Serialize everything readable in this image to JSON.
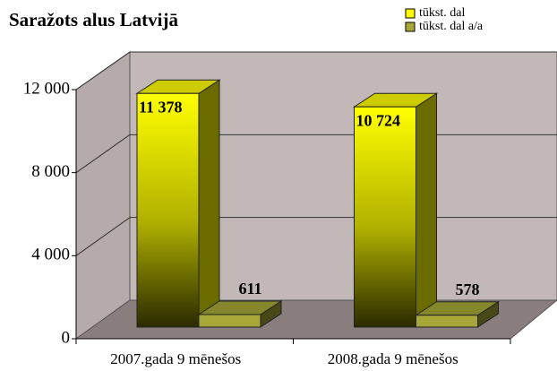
{
  "chart_data": {
    "type": "bar3d",
    "title": "Saražots alus Latvijā",
    "categories": [
      "2007.gada 9 mēnešos",
      "2008.gada 9 mēnešos"
    ],
    "series": [
      {
        "name": "tūkst. dal",
        "color": "#ffff00",
        "values": [
          11378,
          10724
        ],
        "value_labels": [
          "11 378",
          "10 724"
        ]
      },
      {
        "name": "tūkst. dal a/a",
        "color": "#a8a838",
        "values": [
          611,
          578
        ]
      }
    ],
    "ylim": [
      0,
      12000
    ],
    "yticks": [
      {
        "value": 0,
        "label": "0"
      },
      {
        "value": 4000,
        "label": "4 000"
      },
      {
        "value": 8000,
        "label": "8 000"
      },
      {
        "value": 12000,
        "label": "12 000"
      }
    ],
    "grid": true
  }
}
